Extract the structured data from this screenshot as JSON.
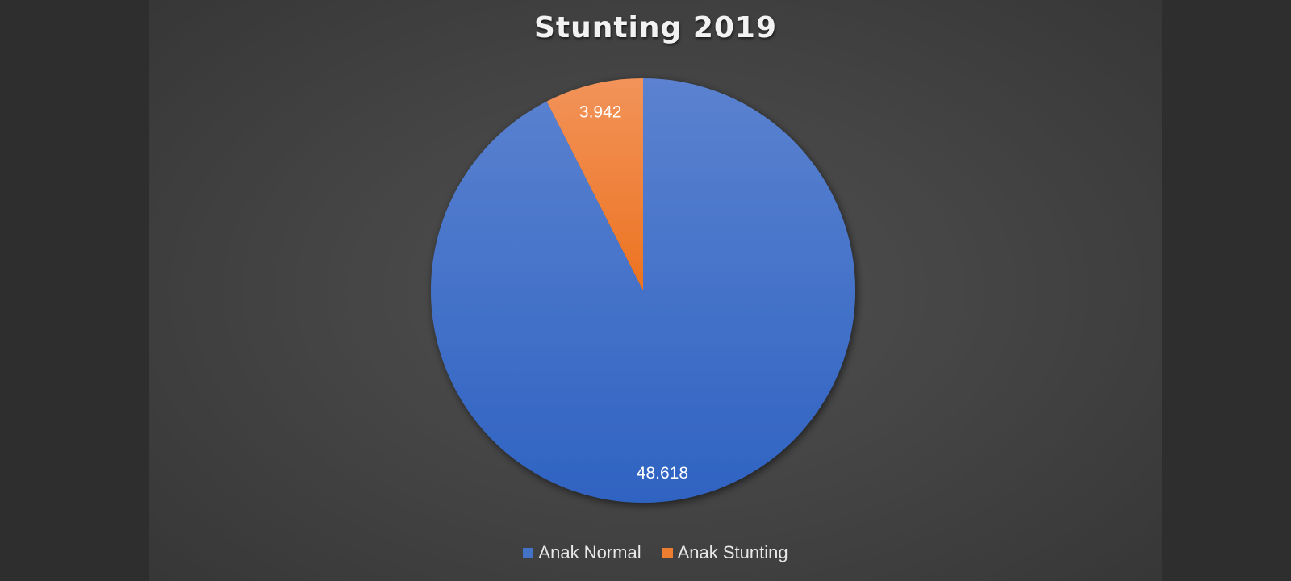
{
  "chart_data": {
    "type": "pie",
    "title": "Stunting 2019",
    "categories": [
      "Anak Normal",
      "Anak Stunting"
    ],
    "values": [
      48618,
      3942
    ],
    "labels": [
      "48.618",
      "3.942"
    ],
    "colors": [
      "#4472c4",
      "#ed7d31"
    ],
    "legend_position": "bottom",
    "start_angle": "12 o'clock, clockwise"
  }
}
